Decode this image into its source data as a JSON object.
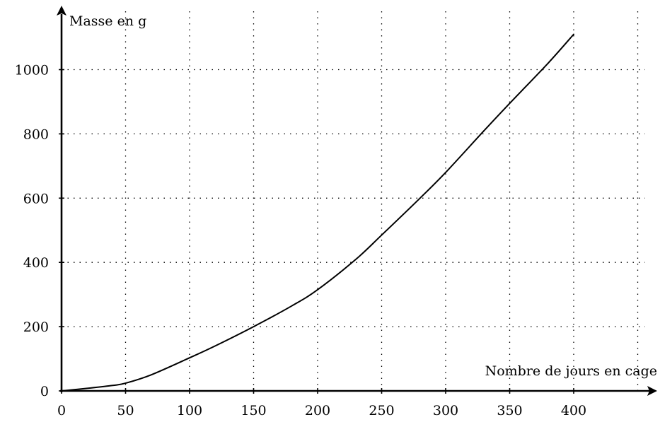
{
  "chart_data": {
    "type": "line",
    "xlabel": "Nombre de jours en cage",
    "ylabel": "Masse en g",
    "xlim": [
      0,
      460
    ],
    "ylim": [
      0,
      1175
    ],
    "x_ticks": [
      0,
      50,
      100,
      150,
      200,
      250,
      300,
      350,
      400
    ],
    "y_ticks": [
      0,
      200,
      400,
      600,
      800,
      1000
    ],
    "x_tick_labels": [
      "0",
      "50",
      "100",
      "150",
      "200",
      "250",
      "300",
      "350",
      "400"
    ],
    "y_tick_labels": [
      "0",
      "200",
      "400",
      "600",
      "800",
      "1000"
    ],
    "x_grid": [
      50,
      100,
      150,
      200,
      250,
      300,
      350,
      400,
      450
    ],
    "y_grid": [
      200,
      400,
      600,
      800,
      1000
    ],
    "grid": "dotted",
    "series": [
      {
        "x": [
          0,
          20,
          40,
          50,
          70,
          100,
          120,
          150,
          180,
          200,
          230,
          250,
          280,
          300,
          330,
          350,
          380,
          400
        ],
        "values": [
          0,
          8,
          17,
          24,
          50,
          103,
          140,
          200,
          265,
          315,
          410,
          485,
          600,
          680,
          810,
          895,
          1020,
          1110
        ]
      }
    ]
  }
}
